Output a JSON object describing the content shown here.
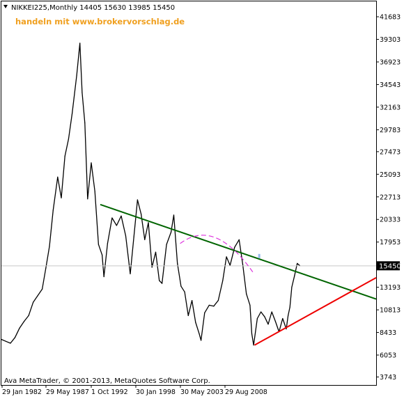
{
  "header": {
    "symbol_line": "NIKKEI225,Monthly  14405 15630 13985 15450",
    "watermark": "handeln mit www.brokervorschlag.de"
  },
  "footer": {
    "copyright": "Ava MetaTrader, © 2001-2013, MetaQuotes Software Corp."
  },
  "chart_data": {
    "type": "line",
    "title": "NIKKEI225,Monthly",
    "ohlc_last": {
      "open": 14405,
      "high": 15630,
      "low": 13985,
      "close": 15450
    },
    "current_price_label": "15450",
    "y_ticks": [
      41683,
      39303,
      36923,
      34543,
      32163,
      29783,
      27473,
      25093,
      22713,
      20333,
      17953,
      15573,
      13193,
      10813,
      8433,
      6053,
      3743
    ],
    "x_ticks": [
      "29 Jan 1982",
      "29 May 1987",
      "1 Oct 1992",
      "30 Jan 1998",
      "30 May 2003",
      "29 Aug 2008"
    ],
    "ylim": [
      2900,
      43300
    ],
    "xlim": [
      1981.3,
      2022.6
    ],
    "grid": false,
    "colors": {
      "price": "#000000",
      "upper_trendline": "#006400",
      "lower_trendline": "#ee0000",
      "arc": "#dd33dd",
      "label_bg": "#000000",
      "watermark": "#f0a020"
    },
    "series": [
      {
        "x": [
          1981.3,
          1981.8,
          1982.3,
          1982.8,
          1983.3,
          1983.8,
          1984.3,
          1984.8,
          1985.3,
          1985.8,
          1986.2,
          1986.6,
          1987.0,
          1987.5,
          1987.9,
          1988.3,
          1988.7,
          1989.1,
          1989.6,
          1989.95,
          1990.2,
          1990.5,
          1990.8,
          1991.2,
          1991.6,
          1992.0,
          1992.4,
          1992.6,
          1993.0,
          1993.5,
          1994.0,
          1994.5,
          1995.0,
          1995.5,
          1995.9,
          1996.3,
          1996.7,
          1997.1,
          1997.5,
          1997.9,
          1998.3,
          1998.7,
          1999.0,
          1999.5,
          2000.0,
          2000.3,
          2000.7,
          2001.1,
          2001.5,
          2001.9,
          2002.3,
          2002.7,
          2003.1,
          2003.3,
          2003.7,
          2004.2,
          2004.7,
          2005.2,
          2005.7,
          2006.1,
          2006.5,
          2007.0,
          2007.5,
          2007.9,
          2008.3,
          2008.7,
          2008.9,
          2009.1,
          2009.5,
          2009.9,
          2010.3,
          2010.7,
          2011.1,
          2011.5,
          2011.9,
          2012.3,
          2012.7,
          2012.9,
          2013.1,
          2013.3,
          2013.6,
          2013.9,
          2014.2
        ],
        "values": [
          7700,
          7500,
          7300,
          7900,
          8900,
          9600,
          10200,
          11600,
          12300,
          13000,
          15200,
          17500,
          21300,
          24800,
          22600,
          27000,
          28800,
          31500,
          35500,
          38900,
          33700,
          30500,
          22500,
          26300,
          23300,
          17700,
          16600,
          14300,
          17800,
          20500,
          19700,
          20700,
          18600,
          14600,
          18500,
          22400,
          20900,
          18200,
          20000,
          15300,
          16900,
          13900,
          13600,
          17700,
          19000,
          20800,
          15700,
          13300,
          12700,
          10200,
          11800,
          9500,
          8300,
          7600,
          10500,
          11300,
          11200,
          11800,
          13900,
          16400,
          15500,
          17400,
          18200,
          15600,
          12500,
          11300,
          8300,
          7100,
          9900,
          10600,
          10100,
          9300,
          10600,
          9600,
          8500,
          9900,
          8800,
          10200,
          11100,
          13200,
          14400,
          15700,
          15450
        ]
      }
    ],
    "trendlines": [
      {
        "name": "upper",
        "points": [
          [
            1992.2,
            21900
          ],
          [
            2022.6,
            11950
          ]
        ]
      },
      {
        "name": "lower",
        "points": [
          [
            2009.2,
            7100
          ],
          [
            2022.6,
            14200
          ]
        ]
      }
    ]
  }
}
